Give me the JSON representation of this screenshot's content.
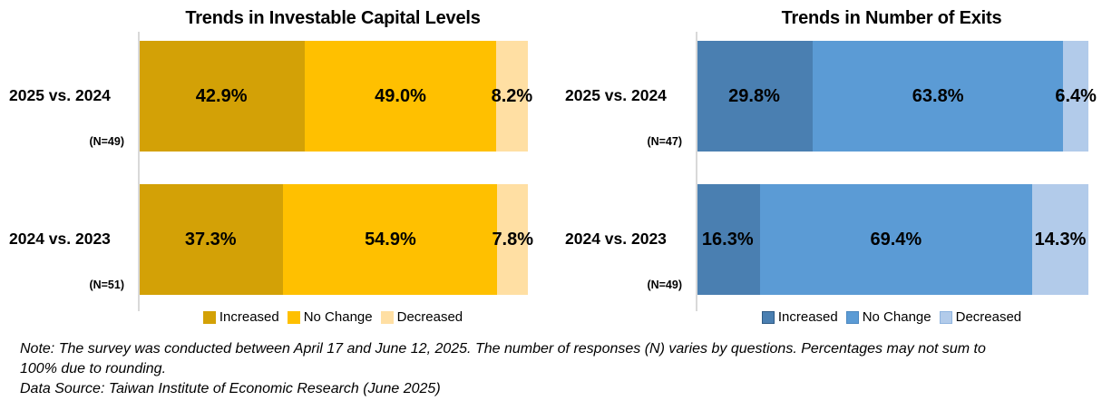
{
  "notes": {
    "note": "Note: The survey was conducted between April 17 and  June 12, 2025. The number of responses (N) varies by questions. Percentages may not sum to 100% due to rounding.",
    "source": "Data Source: Taiwan Institute of Economic Research (June 2025)"
  },
  "chart_data": [
    {
      "type": "bar",
      "subtype": "horizontal-stacked",
      "title": "Trends in Investable Capital Levels",
      "categories": [
        "2025 vs. 2024",
        "2024 vs. 2023"
      ],
      "n_labels": [
        "(N=49)",
        "(N=51)"
      ],
      "series": [
        {
          "name": "Increased",
          "values": [
            42.9,
            37.3
          ],
          "color": "#D3A106"
        },
        {
          "name": "No Change",
          "values": [
            49.0,
            54.9
          ],
          "color": "#FFC000"
        },
        {
          "name": "Decreased",
          "values": [
            8.2,
            7.8
          ],
          "color": "#FFDFA3"
        }
      ],
      "value_suffix": "%",
      "xlim": [
        0,
        100
      ],
      "grid": false,
      "legend_position": "bottom",
      "legend": [
        "Increased",
        "No Change",
        "Decreased"
      ]
    },
    {
      "type": "bar",
      "subtype": "horizontal-stacked",
      "title": "Trends in Number of Exits",
      "categories": [
        "2025 vs. 2024",
        "2024 vs. 2023"
      ],
      "n_labels": [
        "(N=47)",
        "(N=49)"
      ],
      "series": [
        {
          "name": "Increased",
          "values": [
            29.8,
            16.3
          ],
          "color": "#4A7FB1",
          "swatch_border": "#2E5A84"
        },
        {
          "name": "No Change",
          "values": [
            63.8,
            69.4
          ],
          "color": "#5B9BD5",
          "swatch_border": "#4C88C0"
        },
        {
          "name": "Decreased",
          "values": [
            6.4,
            14.3
          ],
          "color": "#B2CBEA",
          "swatch_border": "#8FB4DF"
        }
      ],
      "value_suffix": "%",
      "xlim": [
        0,
        100
      ],
      "grid": false,
      "legend_position": "bottom",
      "legend": [
        "Increased",
        "No Change",
        "Decreased"
      ]
    }
  ]
}
